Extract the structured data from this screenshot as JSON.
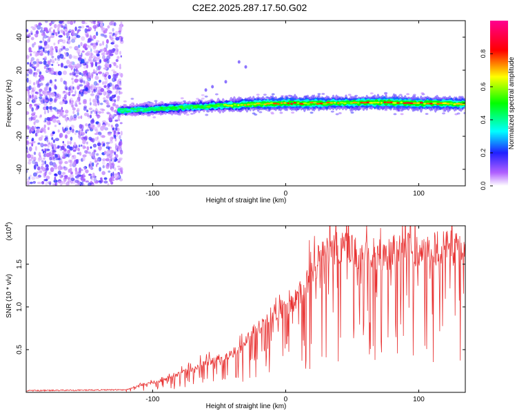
{
  "figure_title": "C2E2.2025.287.17.50.G02",
  "chart_data": [
    {
      "type": "heatmap",
      "title": "C2E2.2025.287.17.50.G02",
      "xlabel": "Height of straight line (km)",
      "ylabel": "Frequency (Hz)",
      "xlim": [
        -195,
        135
      ],
      "ylim": [
        -50,
        50
      ],
      "xticks": [
        -100,
        0,
        100
      ],
      "yticks": [
        -40,
        -20,
        0,
        20,
        40
      ],
      "colorbar": {
        "label": "Normalized spectral amplitude",
        "range": [
          0,
          1
        ],
        "ticks": [
          0.0,
          0.2,
          0.4,
          0.6,
          0.8
        ]
      },
      "noise_region_x": [
        -195,
        -123
      ],
      "signal_track": [
        {
          "x": -125,
          "freq": -4.5,
          "amp": 0.35
        },
        {
          "x": -100,
          "freq": -3.5,
          "amp": 0.45
        },
        {
          "x": -75,
          "freq": -2.5,
          "amp": 0.5
        },
        {
          "x": -50,
          "freq": -1.5,
          "amp": 0.55
        },
        {
          "x": -25,
          "freq": -0.5,
          "amp": 0.7
        },
        {
          "x": 0,
          "freq": 0.0,
          "amp": 0.8
        },
        {
          "x": 25,
          "freq": 0.0,
          "amp": 0.75
        },
        {
          "x": 50,
          "freq": 0.3,
          "amp": 0.7
        },
        {
          "x": 75,
          "freq": 0.5,
          "amp": 0.85
        },
        {
          "x": 100,
          "freq": 0.0,
          "amp": 0.8
        },
        {
          "x": 135,
          "freq": -0.5,
          "amp": 0.7
        }
      ]
    },
    {
      "type": "line",
      "xlabel": "Height of straight line (km)",
      "ylabel": "SNR (10 * v/v)",
      "y_multiplier_label": "(x10",
      "y_multiplier_exp": "4",
      "y_multiplier_close": ")",
      "xlim": [
        -195,
        135
      ],
      "ylim": [
        0,
        1.95
      ],
      "xticks": [
        -100,
        0,
        100
      ],
      "yticks": [
        0.5,
        1.0,
        1.5
      ],
      "ytick_labels": [
        "0.5",
        "1.0",
        "1.5"
      ],
      "series_color": "#e83030",
      "envelope": [
        {
          "x": -195,
          "y": 0.02
        },
        {
          "x": -120,
          "y": 0.03
        },
        {
          "x": -110,
          "y": 0.08
        },
        {
          "x": -90,
          "y": 0.15
        },
        {
          "x": -75,
          "y": 0.25
        },
        {
          "x": -60,
          "y": 0.35
        },
        {
          "x": -45,
          "y": 0.42
        },
        {
          "x": -35,
          "y": 0.5
        },
        {
          "x": -25,
          "y": 0.7
        },
        {
          "x": -15,
          "y": 0.85
        },
        {
          "x": -5,
          "y": 0.95
        },
        {
          "x": 5,
          "y": 1.05
        },
        {
          "x": 15,
          "y": 1.25
        },
        {
          "x": 25,
          "y": 1.55
        },
        {
          "x": 35,
          "y": 1.68
        },
        {
          "x": 50,
          "y": 1.65
        },
        {
          "x": 70,
          "y": 1.62
        },
        {
          "x": 90,
          "y": 1.66
        },
        {
          "x": 110,
          "y": 1.68
        },
        {
          "x": 135,
          "y": 1.7
        }
      ]
    }
  ]
}
